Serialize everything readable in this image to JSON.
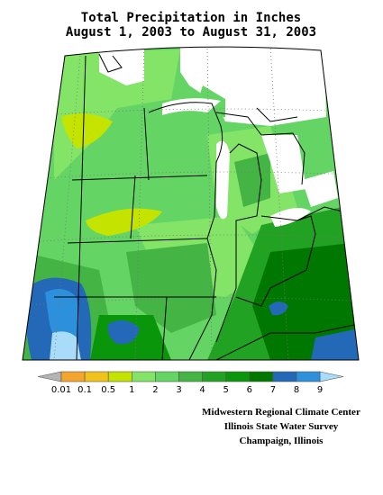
{
  "title": [
    "Total Precipitation in Inches",
    "August 1, 2003 to August 31, 2003"
  ],
  "legend": {
    "labels": [
      "0.01",
      "0.1",
      "0.5",
      "1",
      "2",
      "3",
      "4",
      "5",
      "6",
      "7",
      "8",
      "9"
    ],
    "under_color": "#b4b4b4",
    "colors": [
      "#f4a52e",
      "#f2c21c",
      "#c4e400",
      "#84e468",
      "#64d464",
      "#44b444",
      "#22a222",
      "#0a960a",
      "#007800",
      "#2468b8",
      "#2c90dc"
    ],
    "over_color": "#a8dcf8"
  },
  "credits": [
    "Midwestern Regional Climate Center",
    "Illinois State Water Survey",
    "Champaign, Illinois"
  ]
}
